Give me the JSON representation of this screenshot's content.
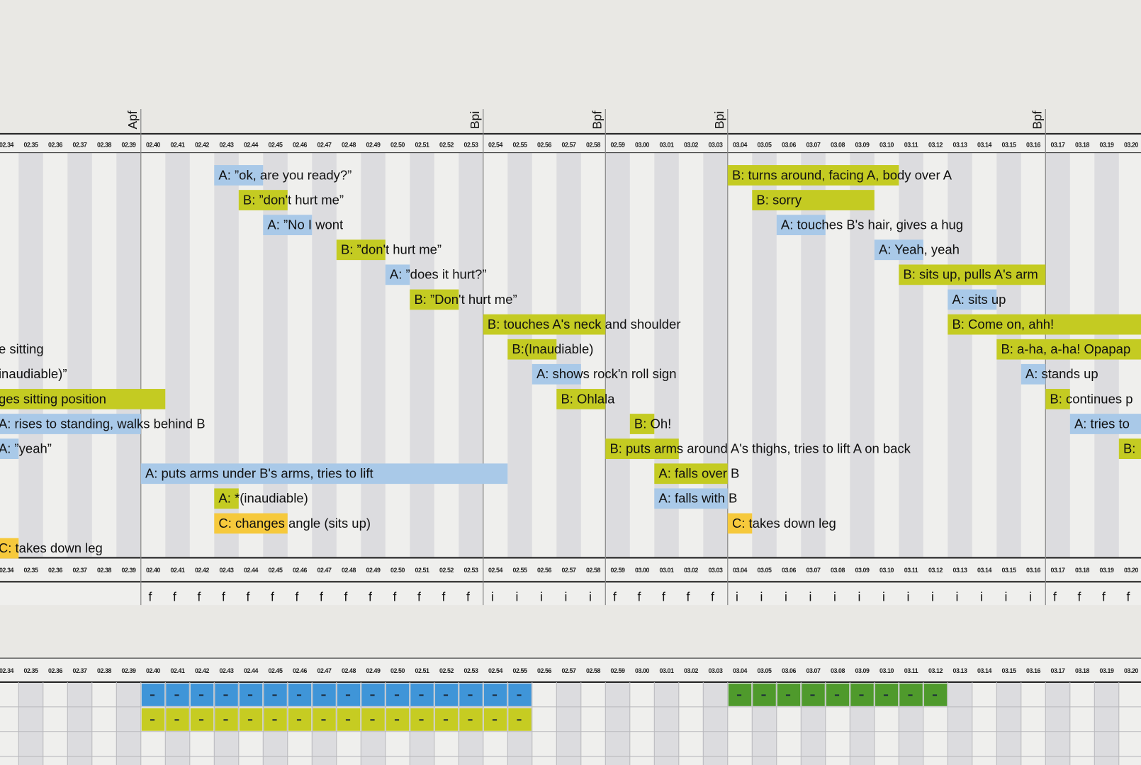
{
  "times": [
    "02.34",
    "02.35",
    "02.36",
    "02.37",
    "02.38",
    "02.39",
    "02.40",
    "02.41",
    "02.42",
    "02.43",
    "02.44",
    "02.45",
    "02.46",
    "02.47",
    "02.48",
    "02.49",
    "02.50",
    "02.51",
    "02.52",
    "02.53",
    "02.54",
    "02.55",
    "02.56",
    "02.57",
    "02.58",
    "02.59",
    "03.00",
    "03.01",
    "03.02",
    "03.03",
    "03.04",
    "03.05",
    "03.06",
    "03.07",
    "03.08",
    "03.09",
    "03.10",
    "03.11",
    "03.12",
    "03.13",
    "03.14",
    "03.15",
    "03.16",
    "03.17",
    "03.18",
    "03.19",
    "03.20"
  ],
  "phases": [
    {
      "label": "Apf",
      "at": "02.40"
    },
    {
      "label": "Bpi",
      "at": "02.54"
    },
    {
      "label": "Bpf",
      "at": "02.59"
    },
    {
      "label": "Bpi",
      "at": "03.04"
    },
    {
      "label": "Bpf",
      "at": "03.17"
    }
  ],
  "rows": [
    [
      {
        "text": "A: ”ok, are you ready?”",
        "color": "#a9c9e8",
        "start": "02.43",
        "end": "02.44"
      },
      {
        "text": "B: turns around, facing A, body over A",
        "color": "#c4cb22",
        "start": "03.04",
        "end": "03.10"
      }
    ],
    [
      {
        "text": "B: ”don't hurt me”",
        "color": "#c4cb22",
        "start": "02.44",
        "end": "02.45"
      },
      {
        "text": "B: sorry",
        "color": "#c4cb22",
        "start": "03.05",
        "end": "03.09"
      }
    ],
    [
      {
        "text": "A: ”No I wont",
        "color": "#a9c9e8",
        "start": "02.45",
        "end": "02.46"
      },
      {
        "text": "A: touches B's hair, gives a hug",
        "color": "#a9c9e8",
        "start": "03.06",
        "end": "03.07"
      }
    ],
    [
      {
        "text": "B: ”don't hurt me”",
        "color": "#c4cb22",
        "start": "02.48",
        "end": "02.49"
      },
      {
        "text": "A: Yeah, yeah",
        "color": "#a9c9e8",
        "start": "03.10",
        "end": "03.11"
      }
    ],
    [
      {
        "text": "A: ”does it hurt?”",
        "color": "#a9c9e8",
        "start": "02.50",
        "end": "02.50"
      },
      {
        "text": "B: sits up, pulls A's arm",
        "color": "#c4cb22",
        "start": "03.11",
        "end": "03.16"
      }
    ],
    [
      {
        "text": "B: ”Don't hurt me”",
        "color": "#c4cb22",
        "start": "02.51",
        "end": "02.52"
      },
      {
        "text": "A: sits up",
        "color": "#a9c9e8",
        "start": "03.13",
        "end": "03.14"
      }
    ],
    [
      {
        "text": "B: touches A's neck and shoulder",
        "color": "#c4cb22",
        "start": "02.54",
        "end": "02.58"
      },
      {
        "text": "B: Come on, ahh!",
        "color": "#c4cb22",
        "start": "03.13",
        "end": "03.20"
      }
    ],
    [
      {
        "text": "e sitting",
        "start": "02.34",
        "end": "02.34"
      },
      {
        "text": "B:(Inaudiable)",
        "color": "#c4cb22",
        "start": "02.55",
        "end": "02.56"
      },
      {
        "text": "B: a-ha, a-ha! Opapap",
        "color": "#c4cb22",
        "start": "03.15",
        "end": "03.20"
      }
    ],
    [
      {
        "text": "inaudiable)”",
        "start": "02.34",
        "end": "02.34"
      },
      {
        "text": "A: shows rock'n roll sign",
        "color": "#a9c9e8",
        "start": "02.56",
        "end": "02.57"
      },
      {
        "text": "A: stands up",
        "color": "#a9c9e8",
        "start": "03.16",
        "end": "03.16"
      }
    ],
    [
      {
        "text": "ges sitting position",
        "color": "#c4cb22",
        "start": "02.34",
        "end": "02.40"
      },
      {
        "text": "B: Ohlala",
        "color": "#c4cb22",
        "start": "02.57",
        "end": "02.58"
      },
      {
        "text": "B: continues p",
        "color": "#c4cb22",
        "start": "03.17",
        "end": "03.17"
      }
    ],
    [
      {
        "text": "A: rises to standing, walks behind B",
        "color": "#a9c9e8",
        "start": "02.34",
        "end": "02.39"
      },
      {
        "text": "B: Oh!",
        "color": "#c4cb22",
        "start": "03.00",
        "end": "03.00"
      },
      {
        "text": "A: tries to",
        "color": "#a9c9e8",
        "start": "03.18",
        "end": "03.20"
      }
    ],
    [
      {
        "text": "A: ”yeah”",
        "color": "#a9c9e8",
        "start": "02.34",
        "end": "02.34"
      },
      {
        "text": "B: puts arms around A's thighs, tries to lift A on back",
        "color": "#c4cb22",
        "start": "02.59",
        "end": "03.01"
      },
      {
        "text": "B:",
        "color": "#c4cb22",
        "start": "03.20",
        "end": "03.20"
      }
    ],
    [
      {
        "text": "A: puts arms under B's arms, tries to lift",
        "color": "#a9c9e8",
        "start": "02.40",
        "end": "02.54"
      },
      {
        "text": "A: falls over B",
        "color": "#c4cb22",
        "start": "03.01",
        "end": "03.03"
      }
    ],
    [
      {
        "text": "A: *(inaudiable)",
        "color": "#c4cb22",
        "start": "02.43",
        "end": "02.43"
      },
      {
        "text": "A: falls with B",
        "color": "#a9c9e8",
        "start": "03.01",
        "end": "03.03"
      }
    ],
    [
      {
        "text": "C: changes angle (sits up)",
        "color": "#f6c93c",
        "start": "02.43",
        "end": "02.45"
      },
      {
        "text": "C: takes down leg",
        "color": "#f6c93c",
        "start": "03.04",
        "end": "03.04"
      }
    ],
    [
      {
        "text": "C: takes down leg",
        "color": "#f6c93c",
        "start": "02.34",
        "end": "02.34"
      }
    ]
  ],
  "codes": [
    {
      "code": "f",
      "from": "02.40",
      "to": "02.53"
    },
    {
      "code": "i",
      "from": "02.54",
      "to": "02.58"
    },
    {
      "code": "f",
      "from": "02.59",
      "to": "03.03"
    },
    {
      "code": "i",
      "from": "03.04",
      "to": "03.16"
    },
    {
      "code": "f",
      "from": "03.17",
      "to": "03.20"
    }
  ],
  "coding_rows": [
    [
      {
        "color": "#3f95d8",
        "from": "02.40",
        "to": "02.55"
      },
      {
        "color": "#4f9a2c",
        "from": "03.04",
        "to": "03.12"
      }
    ],
    [
      {
        "color": "#c6cc22",
        "from": "02.40",
        "to": "02.55"
      }
    ]
  ]
}
